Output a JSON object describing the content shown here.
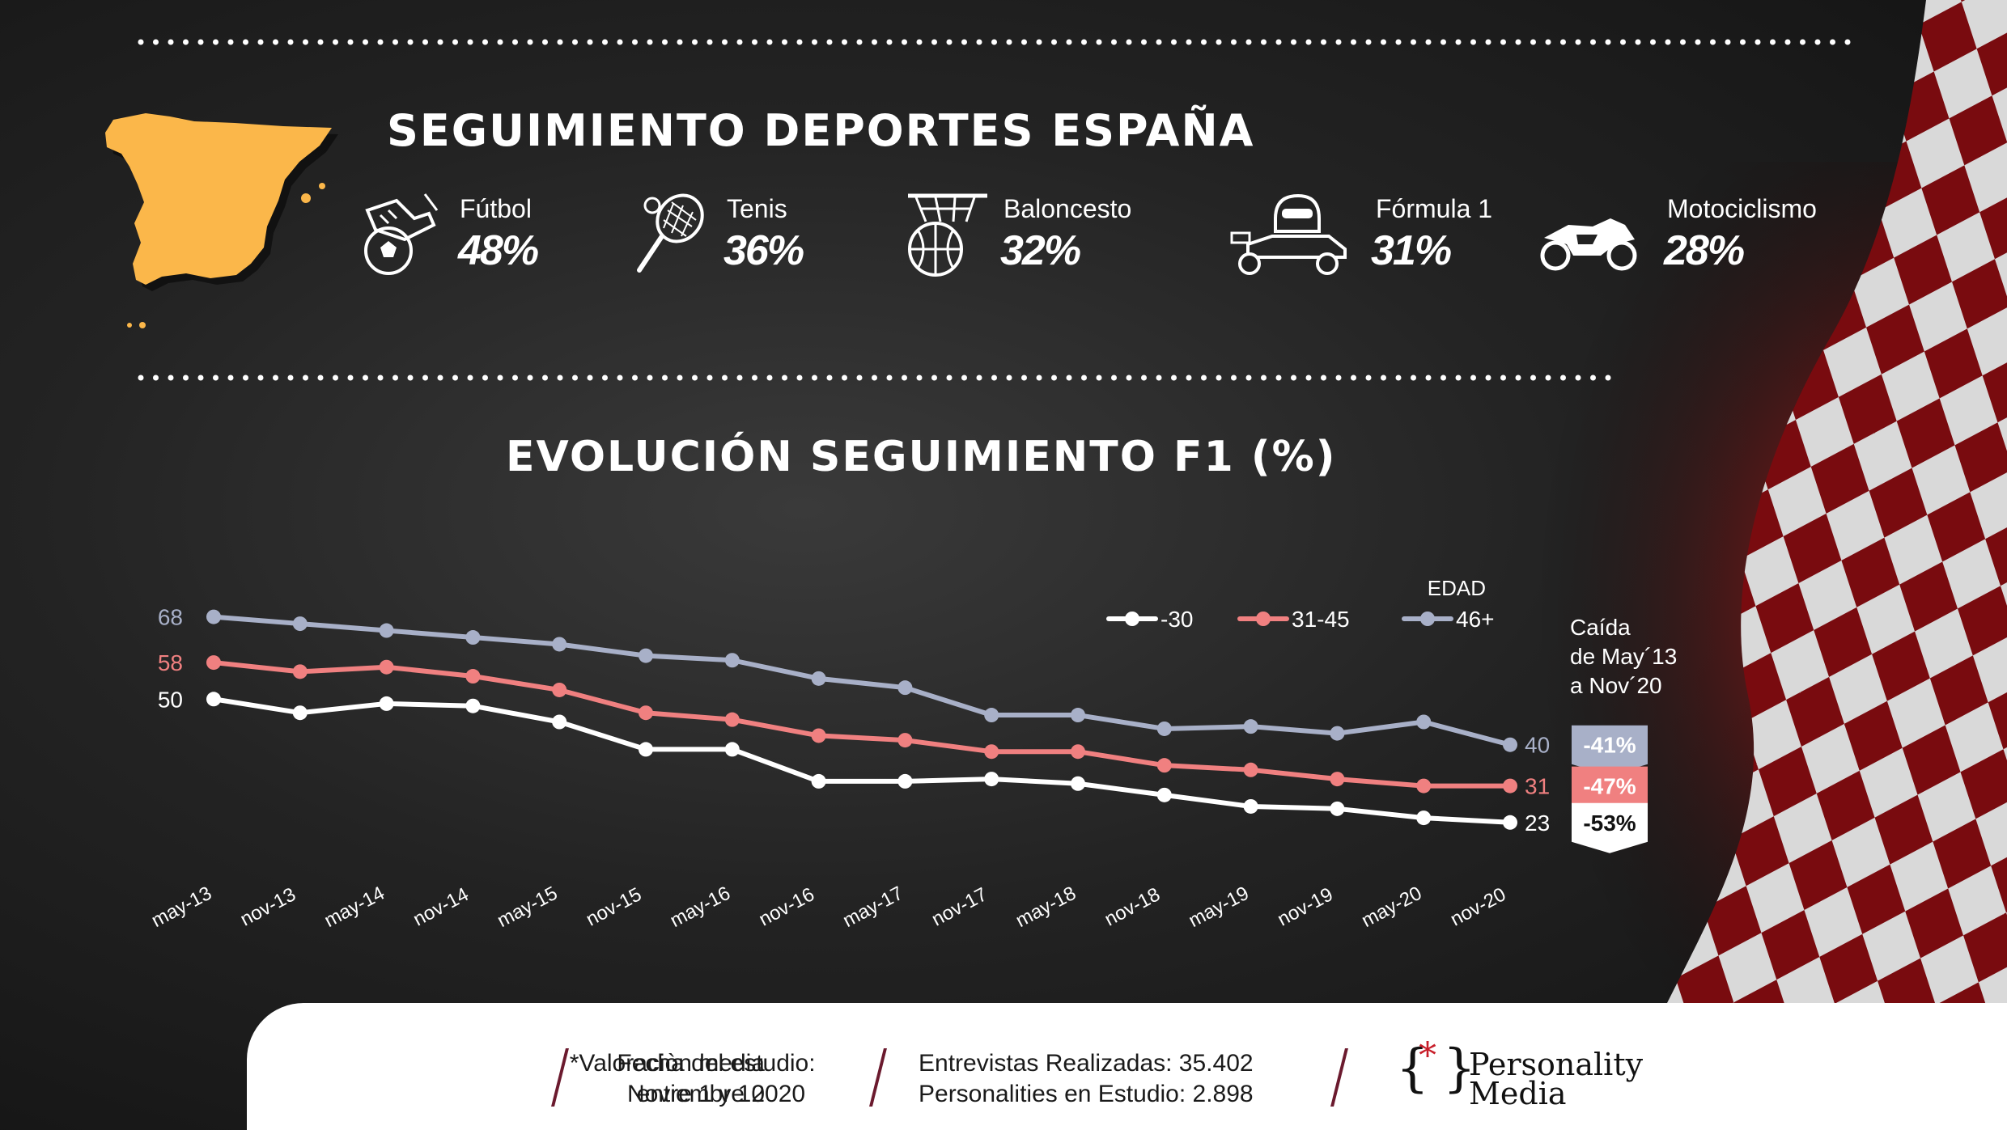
{
  "header": {
    "title": "SEGUIMIENTO DEPORTES ESPAÑA"
  },
  "sports": [
    {
      "name": "Fútbol",
      "value": "48%",
      "icon": "football-boot-ball-icon"
    },
    {
      "name": "Tenis",
      "value": "36%",
      "icon": "tennis-racket-icon"
    },
    {
      "name": "Baloncesto",
      "value": "32%",
      "icon": "basketball-hoop-icon"
    },
    {
      "name": "Fórmula 1",
      "value": "31%",
      "icon": "f1-car-driver-icon"
    },
    {
      "name": "Motociclismo",
      "value": "28%",
      "icon": "motorcycle-icon"
    }
  ],
  "chart_data": {
    "type": "line",
    "title": "EVOLUCIÓN SEGUIMIENTO F1 (%)",
    "legend_title": "EDAD",
    "legend_position": "top-right",
    "categories": [
      "may-13",
      "nov-13",
      "may-14",
      "nov-14",
      "may-15",
      "nov-15",
      "may-16",
      "nov-16",
      "may-17",
      "nov-17",
      "may-18",
      "nov-18",
      "may-19",
      "nov-19",
      "may-20",
      "nov-20"
    ],
    "ylim": [
      18,
      72
    ],
    "grid": false,
    "series": [
      {
        "name": "-30",
        "color": "#ffffff",
        "values": [
          50,
          47,
          49,
          48.5,
          45,
          39,
          39,
          32,
          32,
          32.5,
          31.5,
          29,
          26.5,
          26,
          24,
          23
        ],
        "start_label": "50",
        "end_label": "23"
      },
      {
        "name": "31-45",
        "color": "#f08080",
        "values": [
          58,
          56,
          57,
          55,
          52,
          47,
          45.5,
          42,
          41,
          38.5,
          38.5,
          35.5,
          34.5,
          32.5,
          31,
          31
        ],
        "start_label": "58",
        "end_label": "31"
      },
      {
        "name": "46+",
        "color": "#a8b0c8",
        "values": [
          68,
          66.5,
          65,
          63.5,
          62,
          59.5,
          58.5,
          54.5,
          52.5,
          46.5,
          46.5,
          43.5,
          44,
          42.5,
          45,
          40
        ],
        "start_label": "68",
        "end_label": "40"
      }
    ],
    "drop": {
      "label": "Caída de May´13 a Nov´20",
      "label_lines": [
        "Caída",
        "de May´13",
        "a Nov´20"
      ],
      "values": [
        {
          "series": "46+",
          "text": "-41%",
          "bg": "#a8b0c8",
          "fg": "#ffffff"
        },
        {
          "series": "31-45",
          "text": "-47%",
          "bg": "#f08080",
          "fg": "#ffffff"
        },
        {
          "series": "-30",
          "text": "-53%",
          "bg": "#ffffff",
          "fg": "#111111"
        }
      ]
    }
  },
  "footer": {
    "note_line1": "*Valoraciòn media",
    "note_line2": "entre 1 y 10",
    "date_line1": "Fecha del estudio:",
    "date_line2": "Noviembre 2020",
    "interviews": "Entrevistas Realizadas: 35.402",
    "personalities": "Personalities en Estudio: 2.898",
    "logo_line1": "Personality",
    "logo_line2": "Media",
    "logo_mark_left": "{",
    "logo_mark_star": "*",
    "logo_mark_right": "}"
  },
  "colors": {
    "accent_map": "#fbb74a",
    "footer_slash": "#6b1a2e",
    "flag_red": "#d01e1e"
  }
}
